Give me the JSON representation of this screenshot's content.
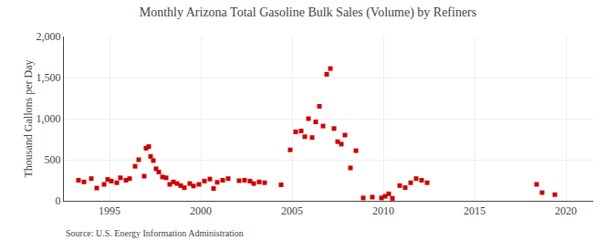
{
  "chart_data": {
    "type": "scatter",
    "title": "Monthly Arizona Total Gasoline Bulk Sales (Volume) by Refiners",
    "ylabel": "Thousand Gallons per Day",
    "annotations": [
      "Source: U.S. Energy Information Administration"
    ],
    "color": "#cc0000",
    "marker": "square",
    "grid": true,
    "xlim": [
      1992.5,
      2021.5
    ],
    "xticks": [
      1995,
      2000,
      2005,
      2010,
      2015,
      2020
    ],
    "ylim": [
      0,
      2000
    ],
    "yticks": [
      0,
      500,
      {
        "value": 1000,
        "label": "1,000"
      },
      {
        "value": 1500,
        "label": "1,500"
      },
      {
        "value": 2000,
        "label": "2,000"
      }
    ],
    "x": [
      1993.3,
      1993.6,
      1994.0,
      1994.3,
      1994.7,
      1994.9,
      1995.1,
      1995.4,
      1995.6,
      1995.9,
      1996.1,
      1996.4,
      1996.6,
      1996.9,
      1997.0,
      1997.15,
      1997.25,
      1997.4,
      1997.55,
      1997.7,
      1997.9,
      1998.1,
      1998.3,
      1998.5,
      1998.7,
      1998.9,
      1999.1,
      1999.4,
      1999.6,
      1999.9,
      2000.2,
      2000.5,
      2000.7,
      2000.9,
      2001.2,
      2001.5,
      2002.1,
      2002.4,
      2002.7,
      2002.9,
      2003.2,
      2003.5,
      2004.4,
      2004.9,
      2005.2,
      2005.5,
      2005.7,
      2005.9,
      2006.1,
      2006.3,
      2006.5,
      2006.7,
      2006.9,
      2007.1,
      2007.3,
      2007.5,
      2007.7,
      2007.9,
      2008.2,
      2008.5,
      2008.9,
      2009.4,
      2009.9,
      2010.1,
      2010.3,
      2010.5,
      2010.9,
      2011.2,
      2011.5,
      2011.8,
      2012.1,
      2012.4,
      2018.4,
      2018.7,
      2019.4
    ],
    "values": [
      250,
      230,
      270,
      155,
      200,
      260,
      240,
      220,
      280,
      250,
      270,
      420,
      500,
      300,
      640,
      660,
      540,
      490,
      390,
      350,
      290,
      280,
      200,
      230,
      210,
      185,
      160,
      210,
      180,
      200,
      240,
      265,
      150,
      225,
      250,
      270,
      245,
      250,
      240,
      210,
      230,
      220,
      195,
      620,
      840,
      850,
      780,
      1000,
      770,
      960,
      1150,
      910,
      1540,
      1610,
      880,
      720,
      690,
      800,
      400,
      610,
      35,
      45,
      35,
      55,
      85,
      30,
      185,
      160,
      220,
      270,
      250,
      220,
      200,
      100,
      75
    ]
  }
}
